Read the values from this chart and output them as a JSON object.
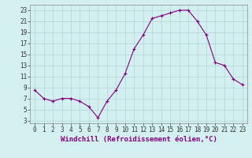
{
  "x": [
    0,
    1,
    2,
    3,
    4,
    5,
    6,
    7,
    8,
    9,
    10,
    11,
    12,
    13,
    14,
    15,
    16,
    17,
    18,
    19,
    20,
    21,
    22,
    23
  ],
  "y": [
    8.5,
    7.0,
    6.5,
    7.0,
    7.0,
    6.5,
    5.5,
    3.5,
    6.5,
    8.5,
    11.5,
    16.0,
    18.5,
    21.5,
    22.0,
    22.5,
    23.0,
    23.0,
    21.0,
    18.5,
    13.5,
    13.0,
    10.5,
    9.5
  ],
  "line_color": "#800080",
  "marker": "+",
  "marker_size": 3,
  "marker_linewidth": 0.8,
  "background_color": "#d4efef",
  "grid_color": "#b0d8d8",
  "xlabel": "Windchill (Refroidissement éolien,°C)",
  "xlim": [
    -0.5,
    23.5
  ],
  "ylim": [
    2.5,
    24.0
  ],
  "yticks": [
    3,
    5,
    7,
    9,
    11,
    13,
    15,
    17,
    19,
    21,
    23
  ],
  "xticks": [
    0,
    1,
    2,
    3,
    4,
    5,
    6,
    7,
    8,
    9,
    10,
    11,
    12,
    13,
    14,
    15,
    16,
    17,
    18,
    19,
    20,
    21,
    22,
    23
  ],
  "xlabel_fontsize": 6.5,
  "tick_fontsize": 5.5,
  "line_width": 0.8
}
